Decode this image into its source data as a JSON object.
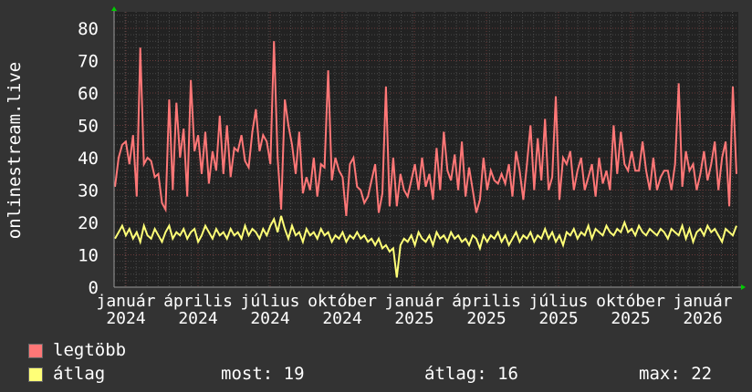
{
  "chart_data": {
    "type": "line",
    "ylabel": "onlinestream.live",
    "ylim": [
      0,
      85
    ],
    "yticks": [
      0,
      10,
      20,
      30,
      40,
      50,
      60,
      70,
      80
    ],
    "grid": true,
    "xtick_labels": [
      "január 2024",
      "április 2024",
      "július 2024",
      "október 2024",
      "január 2025",
      "április 2025",
      "július 2025",
      "október 2025",
      "január 2026"
    ],
    "series": [
      {
        "name": "legtöbb",
        "color": "#ff7777",
        "values": [
          31,
          40,
          44,
          45,
          38,
          47,
          28,
          74,
          38,
          40,
          39,
          34,
          35,
          26,
          24,
          58,
          30,
          57,
          40,
          49,
          28,
          64,
          42,
          47,
          35,
          48,
          32,
          42,
          36,
          53,
          35,
          50,
          34,
          43,
          42,
          47,
          39,
          37,
          48,
          55,
          42,
          47,
          45,
          38,
          76,
          40,
          24,
          58,
          50,
          44,
          35,
          48,
          29,
          34,
          30,
          40,
          28,
          38,
          37,
          67,
          33,
          40,
          36,
          34,
          22,
          38,
          40,
          31,
          30,
          26,
          28,
          33,
          38,
          23,
          29,
          62,
          25,
          40,
          25,
          35,
          30,
          28,
          33,
          38,
          30,
          40,
          31,
          35,
          27,
          43,
          30,
          48,
          36,
          33,
          41,
          30,
          45,
          28,
          37,
          30,
          23,
          27,
          40,
          30,
          36,
          33,
          32,
          35,
          32,
          38,
          28,
          42,
          36,
          27,
          38,
          50,
          30,
          46,
          33,
          52,
          30,
          34,
          59,
          27,
          40,
          38,
          42,
          30,
          36,
          40,
          30,
          34,
          38,
          28,
          40,
          32,
          36,
          30,
          50,
          35,
          48,
          38,
          36,
          42,
          36,
          36,
          45,
          36,
          30,
          40,
          30,
          34,
          36,
          36,
          30,
          38,
          63,
          31,
          42,
          36,
          38,
          30,
          35,
          42,
          33,
          38,
          45,
          30,
          40,
          45,
          25,
          62,
          35
        ]
      },
      {
        "name": "átlag",
        "color": "#ffff77",
        "values": [
          15,
          17,
          19,
          16,
          18,
          15,
          17,
          14,
          19,
          16,
          15,
          18,
          16,
          14,
          17,
          19,
          15,
          17,
          16,
          18,
          15,
          17,
          18,
          14,
          16,
          19,
          17,
          15,
          18,
          16,
          17,
          15,
          18,
          16,
          17,
          15,
          19,
          16,
          18,
          17,
          15,
          18,
          16,
          19,
          21,
          17,
          22,
          18,
          15,
          19,
          16,
          17,
          14,
          18,
          16,
          17,
          15,
          18,
          16,
          17,
          14,
          16,
          15,
          17,
          14,
          16,
          15,
          17,
          15,
          16,
          14,
          15,
          13,
          15,
          12,
          13,
          11,
          12,
          3,
          13,
          15,
          14,
          16,
          13,
          17,
          15,
          14,
          16,
          13,
          17,
          15,
          16,
          14,
          17,
          15,
          16,
          14,
          15,
          13,
          16,
          15,
          12,
          16,
          14,
          16,
          15,
          17,
          14,
          16,
          13,
          15,
          17,
          14,
          16,
          15,
          17,
          14,
          16,
          15,
          18,
          15,
          17,
          14,
          16,
          13,
          17,
          16,
          18,
          15,
          17,
          16,
          19,
          15,
          18,
          17,
          16,
          19,
          17,
          16,
          18,
          17,
          20,
          17,
          18,
          16,
          19,
          17,
          16,
          18,
          17,
          16,
          18,
          17,
          15,
          18,
          17,
          16,
          19,
          15,
          18,
          14,
          17,
          18,
          16,
          19,
          17,
          18,
          16,
          14,
          18,
          17,
          16,
          19
        ]
      }
    ]
  },
  "legend": {
    "items": [
      {
        "label": "legtöbb",
        "color": "#ff7777"
      },
      {
        "label": "átlag",
        "color": "#ffff77"
      }
    ],
    "stats": {
      "most": "most: 19",
      "atlag": "átlag: 16",
      "max": "max: 22"
    }
  }
}
